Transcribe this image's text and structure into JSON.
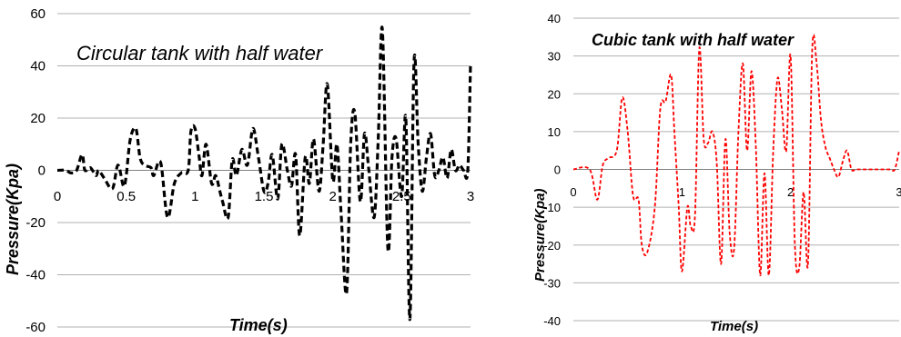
{
  "chart_data": [
    {
      "type": "line",
      "title": "Circular tank with half water",
      "xlabel": "Time(s)",
      "ylabel": "Pressure(Kpa)",
      "xlim": [
        0,
        3
      ],
      "ylim": [
        -60,
        60
      ],
      "x_ticks": [
        "0",
        "0.5",
        "1",
        "1.5",
        "2",
        "2.5",
        "3"
      ],
      "y_ticks": [
        "-60",
        "-40",
        "-20",
        "0",
        "20",
        "40",
        "60"
      ],
      "grid": "horizontal",
      "series": [
        {
          "color": "#000000",
          "dash": "dashed",
          "x": [
            0,
            0.06,
            0.1,
            0.14,
            0.18,
            0.2,
            0.24,
            0.28,
            0.3,
            0.34,
            0.4,
            0.44,
            0.48,
            0.5,
            0.53,
            0.57,
            0.6,
            0.63,
            0.68,
            0.7,
            0.75,
            0.8,
            0.85,
            0.9,
            0.95,
            0.97,
            1.0,
            1.03,
            1.05,
            1.08,
            1.12,
            1.15,
            1.18,
            1.2,
            1.24,
            1.27,
            1.3,
            1.34,
            1.38,
            1.42,
            1.46,
            1.5,
            1.53,
            1.56,
            1.6,
            1.63,
            1.67,
            1.7,
            1.73,
            1.76,
            1.8,
            1.83,
            1.86,
            1.9,
            1.93,
            1.96,
            2.0,
            2.03,
            2.06,
            2.1,
            2.13,
            2.16,
            2.2,
            2.23,
            2.26,
            2.3,
            2.33,
            2.36,
            2.4,
            2.43,
            2.46,
            2.5,
            2.53,
            2.56,
            2.59,
            2.62,
            2.65,
            2.68,
            2.71,
            2.74,
            2.77,
            2.8,
            2.83,
            2.86,
            2.89,
            2.92,
            2.95,
            2.98,
            3.0
          ],
          "y": [
            0,
            0,
            -1,
            0,
            6,
            0,
            1,
            -2,
            0,
            -3,
            -7,
            2,
            -6,
            -2,
            12,
            16,
            5,
            2,
            1,
            -2,
            3,
            -18,
            -5,
            -1,
            0,
            15,
            16,
            5,
            -2,
            10,
            -5,
            -2,
            -8,
            -12,
            -18,
            4,
            -2,
            8,
            2,
            16,
            5,
            -8,
            -5,
            6,
            -11,
            10,
            0,
            -6,
            6,
            -25,
            5,
            -5,
            12,
            -8,
            10,
            33,
            -4,
            10,
            -16,
            -47,
            10,
            22,
            -12,
            14,
            1,
            -18,
            12,
            54,
            -30,
            5,
            12,
            -10,
            20,
            -57,
            42,
            10,
            -8,
            5,
            14,
            -2,
            0,
            5,
            -3,
            8,
            0,
            2,
            0,
            0,
            41
          ]
        }
      ]
    },
    {
      "type": "line",
      "title": "Cubic tank with half water",
      "xlabel": "Time(s)",
      "ylabel": "Pressure(Kpa)",
      "xlim": [
        0,
        3
      ],
      "ylim": [
        -40,
        40
      ],
      "x_ticks": [
        "0",
        "1",
        "2",
        "3"
      ],
      "y_ticks": [
        "-40",
        "-30",
        "-20",
        "-10",
        "0",
        "10",
        "20",
        "30",
        "40"
      ],
      "grid": "horizontal",
      "series": [
        {
          "color": "#ff0000",
          "dash": "dashed",
          "x": [
            0,
            0.15,
            0.22,
            0.27,
            0.32,
            0.4,
            0.45,
            0.5,
            0.55,
            0.6,
            0.63,
            0.68,
            0.75,
            0.8,
            0.85,
            0.9,
            0.93,
            0.97,
            1.0,
            1.05,
            1.08,
            1.12,
            1.16,
            1.2,
            1.24,
            1.28,
            1.32,
            1.36,
            1.4,
            1.44,
            1.48,
            1.52,
            1.56,
            1.6,
            1.64,
            1.68,
            1.72,
            1.76,
            1.8,
            1.84,
            1.88,
            1.92,
            1.96,
            2.0,
            2.04,
            2.08,
            2.12,
            2.16,
            2.2,
            2.24,
            2.28,
            2.32,
            2.36,
            2.4,
            2.44,
            2.48,
            2.52,
            2.56,
            2.6,
            2.64,
            2.68,
            2.72,
            2.76,
            2.8,
            2.84,
            2.88,
            2.92,
            2.96,
            3.0
          ],
          "y": [
            0,
            0,
            -8,
            1,
            3,
            5,
            19,
            10,
            -7,
            -8,
            -20,
            -22,
            -10,
            16,
            18,
            25,
            10,
            -10,
            -27,
            -10,
            -15,
            -12,
            32,
            8,
            7,
            10,
            2,
            -25,
            8,
            -17,
            -21,
            10,
            28,
            5,
            26,
            6,
            -28,
            -1,
            -28,
            5,
            24,
            16,
            5,
            30,
            -20,
            -26,
            -6,
            -25,
            32,
            28,
            13,
            6,
            3,
            0,
            -2,
            2,
            5,
            0,
            0,
            0,
            0,
            0,
            0,
            0,
            0,
            0,
            0,
            0,
            5
          ]
        }
      ]
    }
  ]
}
